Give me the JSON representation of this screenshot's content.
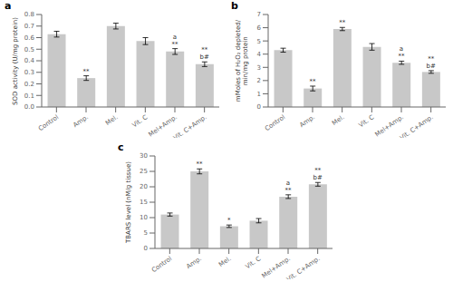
{
  "chart_data": [
    {
      "type": "bar",
      "title": "a",
      "categories": [
        "Control",
        "Amp.",
        "Mel.",
        "Vit. C",
        "Mel+Amp.",
        "Vit. C+Amp."
      ],
      "values": [
        0.63,
        0.25,
        0.7,
        0.57,
        0.48,
        0.37
      ],
      "errors": [
        0.025,
        0.02,
        0.025,
        0.03,
        0.025,
        0.02
      ],
      "ylabel": "SOD activity (U/mg protein)",
      "ylim": [
        0,
        0.8
      ],
      "yticks": [
        {
          "value": 0.0,
          "label": "0.0"
        },
        0.1,
        0.2,
        0.3,
        0.4,
        0.5,
        0.6,
        0.7,
        0.8
      ],
      "annotations": [
        {
          "category": "Amp.",
          "text": "**"
        },
        {
          "category": "Mel+Amp.",
          "text": "a\n**"
        },
        {
          "category": "Vit. C+Amp.",
          "text": "**\nb#"
        }
      ],
      "color": "#c8c8c8",
      "grid": false
    },
    {
      "type": "bar",
      "title": "b",
      "categories": [
        "Control",
        "Amp.",
        "Mel.",
        "Vit. C",
        "Mel+Amp.",
        "Vit. C+Amp."
      ],
      "values": [
        4.3,
        1.4,
        5.9,
        4.55,
        3.35,
        2.65
      ],
      "errors": [
        0.15,
        0.18,
        0.12,
        0.25,
        0.12,
        0.1
      ],
      "ylabel": "mMoles of H₂O₂ depleted/\nmin/mg protein",
      "ylim": [
        0,
        7
      ],
      "yticks": [
        0,
        1,
        2,
        3,
        4,
        5,
        6,
        7
      ],
      "annotations": [
        {
          "category": "Amp.",
          "text": "**"
        },
        {
          "category": "Mel.",
          "text": "**"
        },
        {
          "category": "Mel+Amp.",
          "text": "a\n**"
        },
        {
          "category": "Vit. C+Amp.",
          "text": "**\nb#"
        }
      ],
      "color": "#c8c8c8",
      "grid": false
    },
    {
      "type": "bar",
      "title": "c",
      "categories": [
        "Control",
        "Amp.",
        "Mel.",
        "Vit. C",
        "Mel+Amp.",
        "Vit. C+Amp."
      ],
      "values": [
        11.0,
        25.0,
        7.2,
        9.0,
        16.8,
        20.8
      ],
      "errors": [
        0.5,
        0.8,
        0.4,
        0.7,
        0.6,
        0.6
      ],
      "ylabel": "TBARS level (nM/g tissue)",
      "ylim": [
        0,
        30
      ],
      "yticks": [
        0,
        5,
        10,
        15,
        20,
        25,
        30
      ],
      "annotations": [
        {
          "category": "Amp.",
          "text": "**"
        },
        {
          "category": "Mel.",
          "text": "*"
        },
        {
          "category": "Mel+Amp.",
          "text": "a\n**"
        },
        {
          "category": "Vit. C+Amp.",
          "text": "**\nb#"
        }
      ],
      "color": "#c8c8c8",
      "grid": false
    }
  ]
}
